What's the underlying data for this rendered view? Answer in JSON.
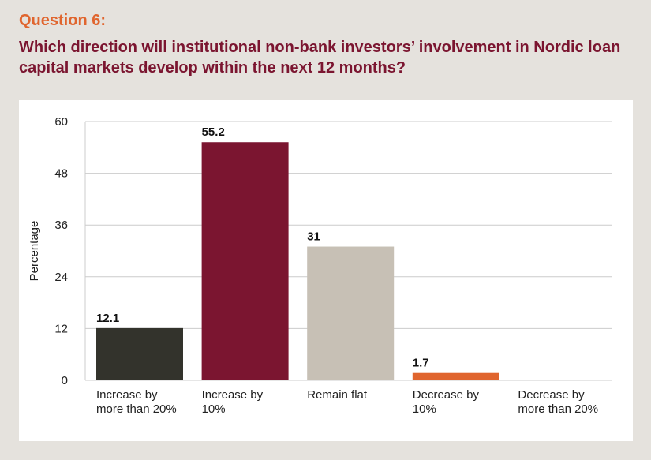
{
  "header": {
    "question_number": "Question 6:",
    "question_text": "Which direction will institutional non-bank investors’ involvement in Nordic loan capital markets develop within the next 12 months?"
  },
  "colors": {
    "background": "#e5e2dd",
    "panel": "#ffffff",
    "title_orange": "#e0652e",
    "title_maroon": "#7b1530",
    "gridline": "#cccccc"
  },
  "chart_data": {
    "type": "bar",
    "categories": [
      [
        "Increase by",
        "more than 20%"
      ],
      [
        "Increase by",
        "10%"
      ],
      [
        "Remain flat"
      ],
      [
        "Decrease by",
        "10%"
      ],
      [
        "Decrease by",
        "more than 20%"
      ]
    ],
    "values": [
      12.1,
      55.2,
      31,
      1.7,
      null
    ],
    "value_labels": [
      "12.1",
      "55.2",
      "31",
      "1.7",
      ""
    ],
    "bar_colors": [
      "#33332c",
      "#7b1530",
      "#c7c0b5",
      "#e0652e",
      "#cccccc"
    ],
    "ylabel": "Percentage",
    "ylim": [
      0,
      60
    ],
    "yticks": [
      0,
      12,
      24,
      36,
      48,
      60
    ],
    "grid": true,
    "legend": "none"
  }
}
